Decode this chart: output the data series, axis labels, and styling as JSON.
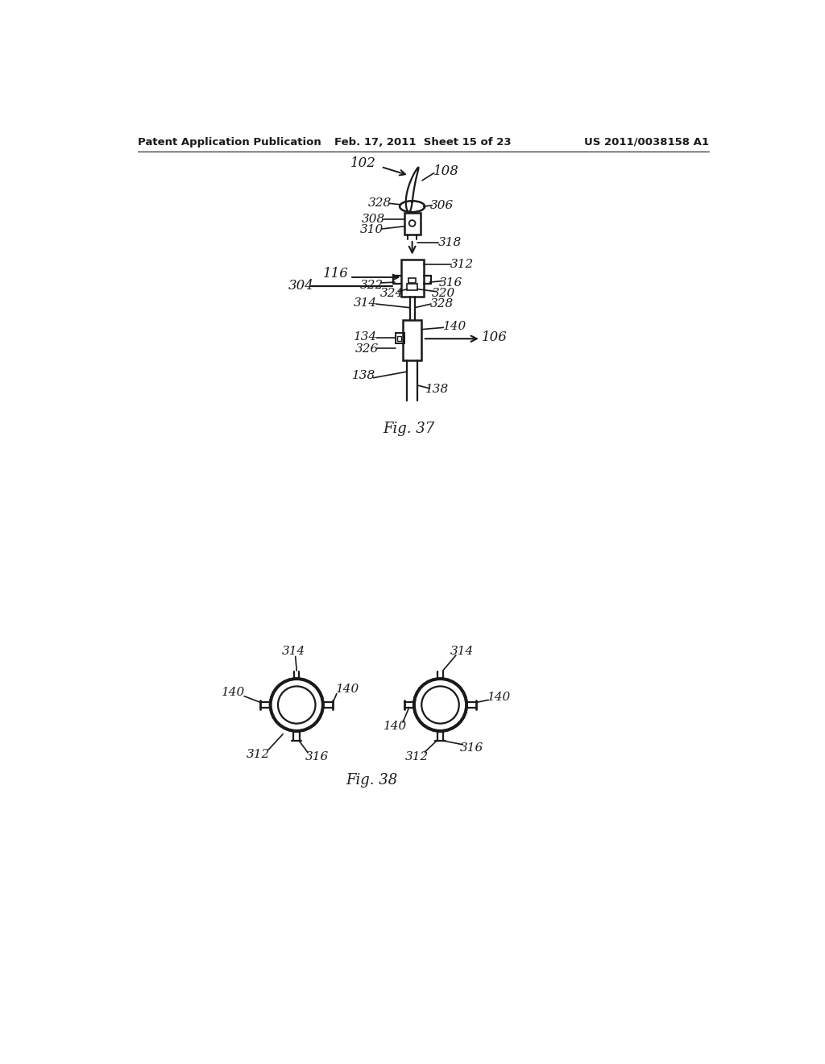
{
  "background_color": "#ffffff",
  "header_left": "Patent Application Publication",
  "header_center": "Feb. 17, 2011  Sheet 15 of 23",
  "header_right": "US 2011/0038158 A1",
  "fig37_caption": "Fig. 37",
  "fig38_caption": "Fig. 38",
  "text_color": "#1a1a1a",
  "line_color": "#1a1a1a"
}
